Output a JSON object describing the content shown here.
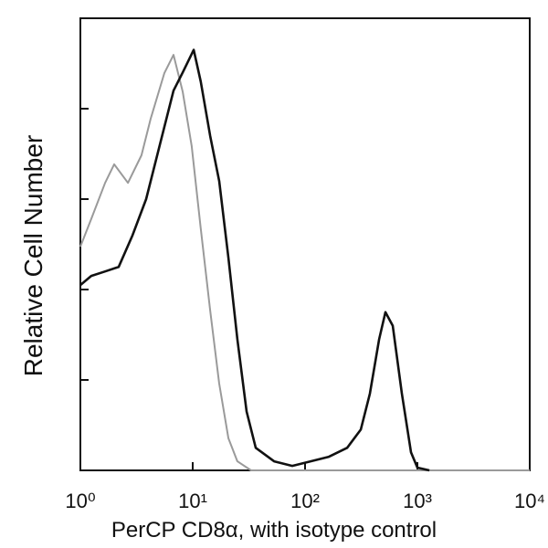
{
  "chart_data": {
    "type": "line",
    "xlabel": "PerCP CD8α, with isotype control",
    "ylabel": "Relative Cell Number",
    "xscale": "log",
    "xlim": [
      1,
      10000
    ],
    "xticks": [
      {
        "value": 1,
        "label": "10⁰"
      },
      {
        "value": 10,
        "label": "10¹"
      },
      {
        "value": 100,
        "label": "10²"
      },
      {
        "value": 1000,
        "label": "10³"
      },
      {
        "value": 10000,
        "label": "10⁴"
      }
    ],
    "ylim": [
      0,
      100
    ],
    "yticks": [
      0,
      20,
      40,
      60,
      80,
      100
    ],
    "ytick_labels": false,
    "series": [
      {
        "name": "Isotype control",
        "color": "#9a9a9a",
        "x": [
          1,
          1.25,
          1.66,
          2,
          2.65,
          3.5,
          4.23,
          5.6,
          6.75,
          8.14,
          9.8,
          11.8,
          14.3,
          17.2,
          20.8,
          25,
          33.1,
          100,
          1000,
          10000
        ],
        "values": [
          49.5,
          55.6,
          63.6,
          67.7,
          63.6,
          69.7,
          77.8,
          87.9,
          91.9,
          83.8,
          71.7,
          53.5,
          35.4,
          19.2,
          7.1,
          2,
          0,
          0,
          0,
          0
        ]
      },
      {
        "name": "PerCP CD8α",
        "color": "#111111",
        "x": [
          1,
          1.25,
          1.66,
          2.19,
          2.91,
          3.85,
          5.1,
          6.75,
          8.14,
          10.2,
          11.8,
          14.3,
          17.2,
          20.8,
          25,
          30.2,
          36.4,
          53,
          76.9,
          112,
          163,
          237,
          313,
          378,
          456,
          519,
          603,
          727,
          877,
          1000,
          1277
        ],
        "values": [
          41,
          43,
          44,
          45,
          52,
          60,
          72,
          84,
          88,
          93,
          86,
          74,
          64,
          47,
          29,
          13,
          5,
          2,
          1,
          2,
          3,
          5,
          9,
          17,
          29,
          35,
          32,
          17,
          4,
          0.6,
          0
        ]
      }
    ]
  }
}
